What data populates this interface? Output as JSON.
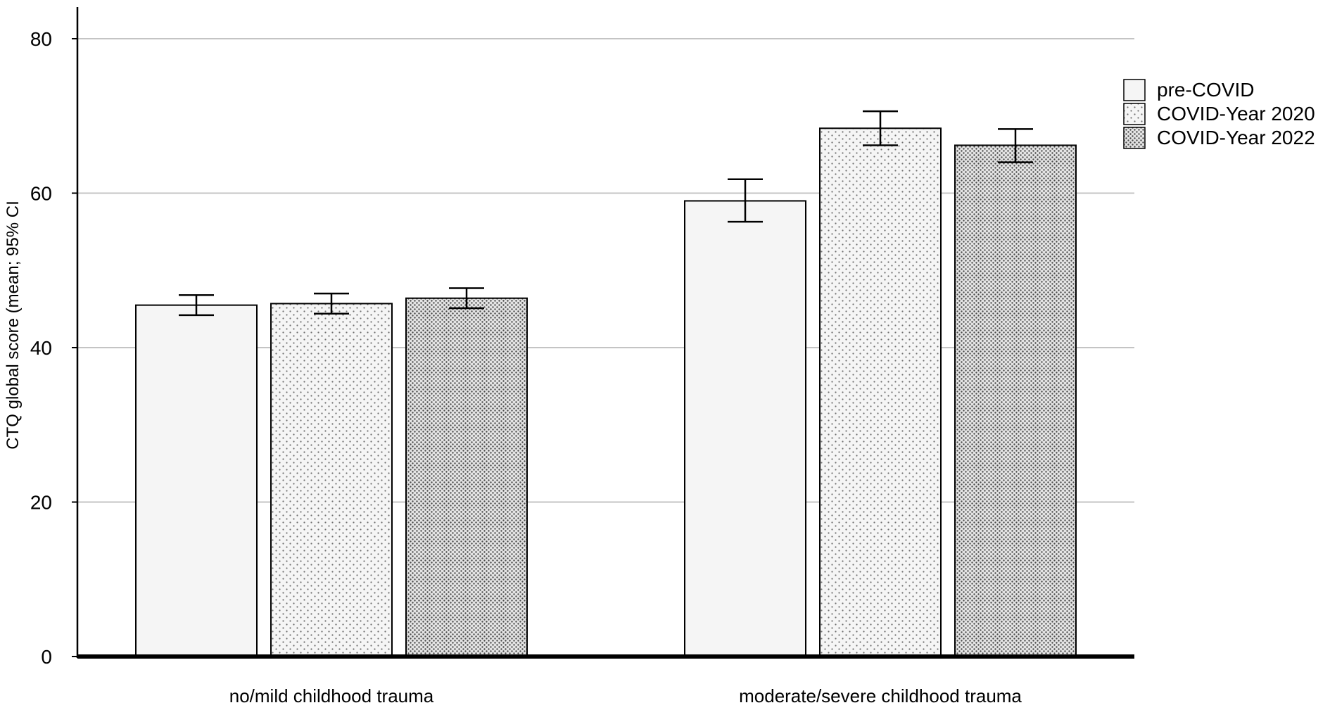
{
  "chart_data": {
    "type": "bar",
    "title": "",
    "xlabel": "",
    "ylabel": "CTQ global score (mean; 95% CI",
    "categories": [
      "no/mild childhood trauma",
      "moderate/severe childhood trauma"
    ],
    "ylim": [
      0,
      85
    ],
    "yticks": [
      0,
      20,
      40,
      60,
      80
    ],
    "grid": "horizontal",
    "legend_position": "top-right",
    "series": [
      {
        "name": "pre-COVID",
        "pattern": "solid",
        "color": "#f5f5f5",
        "values": [
          45.5,
          59.0
        ],
        "ci_low": [
          44.2,
          56.3
        ],
        "ci_high": [
          46.8,
          61.8
        ]
      },
      {
        "name": "COVID-Year 2020",
        "pattern": "sparse-dots",
        "color": "#f5f5f5",
        "values": [
          45.7,
          68.4
        ],
        "ci_low": [
          44.4,
          66.2
        ],
        "ci_high": [
          47.0,
          70.6
        ]
      },
      {
        "name": "COVID-Year 2022",
        "pattern": "dense-dots",
        "color": "#e6e6e6",
        "values": [
          46.4,
          66.2
        ],
        "ci_low": [
          45.1,
          64.0
        ],
        "ci_high": [
          47.7,
          68.3
        ]
      }
    ]
  }
}
